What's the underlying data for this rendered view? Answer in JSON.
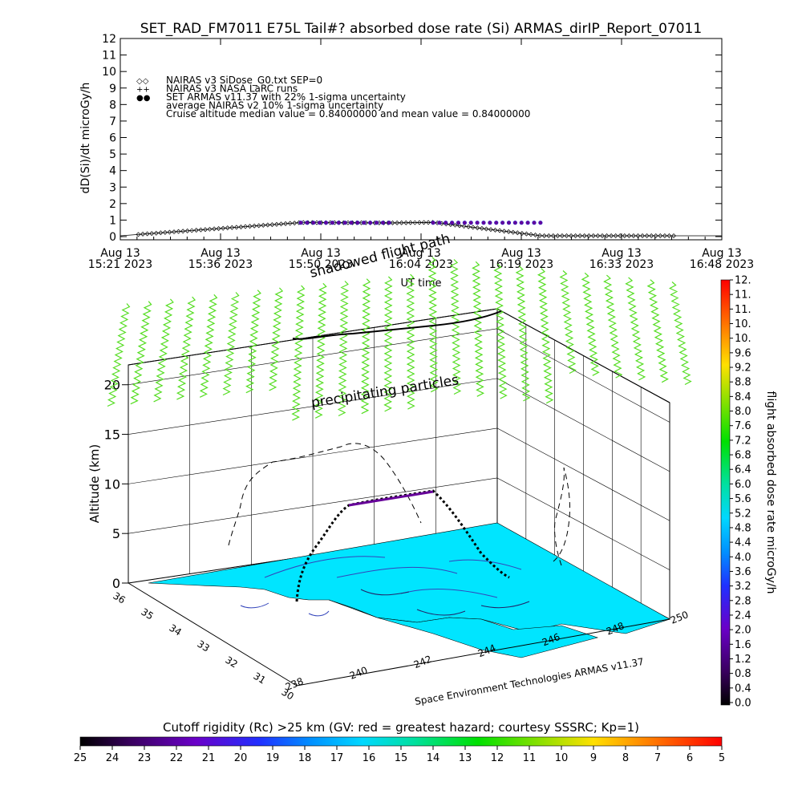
{
  "title": "SET_RAD_FM7011  E75L Tail#? absorbed dose rate (Si) ARMAS_dirIP_Report_07011",
  "colors": {
    "nairas_sidose": "#000000",
    "armas": "#2222cc",
    "armas_fill": "#660099",
    "ground": "#00e5ff",
    "cone": "#55dd22"
  },
  "chart_data": [
    {
      "type": "scatter",
      "title": "SET_RAD_FM7011  E75L Tail#? absorbed dose rate (Si) ARMAS_dirIP_Report_07011",
      "ylabel": "dD(Si)/dt microGy/h",
      "xlabel": "UT time",
      "ylim": [
        0,
        12
      ],
      "yticks": [
        "0",
        "1",
        "2",
        "3",
        "4",
        "5",
        "6",
        "7",
        "8",
        "9",
        "10",
        "11",
        "12"
      ],
      "xticks": [
        {
          "date": "Aug 13",
          "time": "15:21 2023"
        },
        {
          "date": "Aug 13",
          "time": "15:36 2023"
        },
        {
          "date": "Aug 13",
          "time": "15:50 2023"
        },
        {
          "date": "Aug 13",
          "time": "16:04 2023"
        },
        {
          "date": "Aug 13",
          "time": "16:19 2023"
        },
        {
          "date": "Aug 13",
          "time": "16:33 2023"
        },
        {
          "date": "Aug 13",
          "time": "16:48 2023"
        }
      ],
      "legend": [
        {
          "symbol": "◇◇",
          "text": "NAIRAS v3 SiDose_G0.txt SEP=0"
        },
        {
          "symbol": "++",
          "text": "NAIRAS v3 NASA LaRC runs"
        },
        {
          "symbol": "●●",
          "text": "SET ARMAS v11.37 with 22% 1-sigma uncertainty"
        },
        {
          "symbol": "",
          "text": "average NAIRAS v2 10% 1-sigma uncertainty"
        },
        {
          "symbol": "",
          "text": "Cruise altitude median value = 0.84000000 and mean value = 0.84000000"
        }
      ],
      "legend_position": "top-left",
      "series": [
        {
          "name": "NAIRAS v3 SiDose_G0.txt SEP=0",
          "marker": "diamond",
          "segments": [
            [
              0,
              0.05,
              0.3,
              0.85,
              0.45,
              0.83,
              0.52,
              0.86,
              0.7,
              0.05,
              1.0,
              0.05
            ]
          ]
        },
        {
          "name": "SET ARMAS v11.37 with 22% 1-sigma uncertainty",
          "marker": "filled-circle",
          "segments": [
            {
              "x_from": 0.3,
              "x_to": 0.45,
              "y": 0.84
            },
            {
              "x_from": 0.52,
              "x_to": 0.7,
              "y": 0.84
            }
          ]
        }
      ]
    },
    {
      "type": "scatter",
      "title": "",
      "zlabel": "Altitude (km)",
      "zticks": [
        "0",
        "5",
        "10",
        "15",
        "20"
      ],
      "zlim": [
        0,
        22
      ],
      "lat_ticks": [
        "30",
        "31",
        "32",
        "33",
        "34",
        "35",
        "36"
      ],
      "lon_ticks": [
        "238",
        "240",
        "242",
        "244",
        "246",
        "248",
        "250"
      ],
      "annotations": [
        "shadowed flight path",
        "precipitating particles",
        "Space Environment Technologies ARMAS v11.37"
      ],
      "colorbar_right": {
        "label": "flight absorbed dose rate microGy/h",
        "ticks": [
          "0.0",
          "0.4",
          "0.8",
          "1.2",
          "1.6",
          "2.0",
          "2.4",
          "2.8",
          "3.2",
          "3.6",
          "4.0",
          "4.4",
          "4.8",
          "5.2",
          "5.6",
          "6.0",
          "6.4",
          "6.8",
          "7.2",
          "7.6",
          "8.0",
          "8.4",
          "8.8",
          "9.2",
          "9.6",
          "10.",
          "10.",
          "11.",
          "11.",
          "12."
        ]
      },
      "colorbar_bottom": {
        "label": "Cutoff rigidity (Rc) >25 km (GV: red = greatest hazard; courtesy SSSRC; Kp=1)",
        "ticks": [
          "25",
          "24",
          "23",
          "22",
          "21",
          "20",
          "19",
          "18",
          "17",
          "16",
          "15",
          "14",
          "13",
          "12",
          "11",
          "10",
          "9",
          "8",
          "7",
          "6",
          "5"
        ]
      }
    }
  ]
}
